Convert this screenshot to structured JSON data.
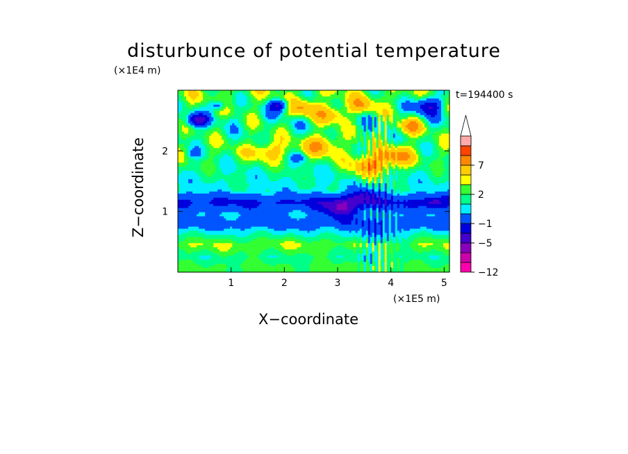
{
  "chart_data": {
    "type": "heatmap",
    "title": "disturbunce of potential temperature",
    "xlabel": "X−coordinate",
    "ylabel": "Z−coordinate",
    "x_unit": "(×1E5 m)",
    "y_unit": "(×1E4 m)",
    "time_label": "t=194400 s",
    "xlim": [
      0,
      5.1
    ],
    "ylim": [
      0,
      3.0
    ],
    "x_ticks": [
      {
        "value": 1,
        "label": "1"
      },
      {
        "value": 2,
        "label": "2"
      },
      {
        "value": 3,
        "label": "3"
      },
      {
        "value": 4,
        "label": "4"
      },
      {
        "value": 5,
        "label": "5"
      }
    ],
    "y_ticks": [
      {
        "value": 1,
        "label": "1"
      },
      {
        "value": 2,
        "label": "2"
      }
    ],
    "colorbar": {
      "levels": [
        -12,
        -9,
        -7,
        -5,
        -3,
        -1,
        0,
        1,
        2,
        3,
        5,
        7,
        9,
        11
      ],
      "colors": [
        "#ff00aa",
        "#cc00aa",
        "#8800bb",
        "#4400cc",
        "#0000dd",
        "#0055ff",
        "#00eeff",
        "#00ff88",
        "#33ff33",
        "#ffff00",
        "#ffcc00",
        "#ff8800",
        "#ff4400",
        "#ff0000",
        "#ffaaaa"
      ],
      "labels": [
        {
          "value": -12,
          "label": "−12"
        },
        {
          "value": -5,
          "label": "−5"
        },
        {
          "value": -1,
          "label": "−1"
        },
        {
          "value": 2,
          "label": "2"
        },
        {
          "value": 7,
          "label": "7"
        }
      ]
    },
    "field_bands": [
      {
        "z": 2.85,
        "value": 1.5,
        "amp": 2.0
      },
      {
        "z": 2.55,
        "value": 0.5,
        "amp": 2.5
      },
      {
        "z": 2.25,
        "value": 0.8,
        "amp": 2.0
      },
      {
        "z": 1.95,
        "value": 1.2,
        "amp": 2.0
      },
      {
        "z": 1.65,
        "value": 0.2,
        "amp": 1.2
      },
      {
        "z": 1.35,
        "value": -0.3,
        "amp": 0.8
      },
      {
        "z": 1.15,
        "value": -3.5,
        "amp": 1.0
      },
      {
        "z": 0.95,
        "value": -1.0,
        "amp": 0.8
      },
      {
        "z": 0.8,
        "value": -2.0,
        "amp": 0.8
      },
      {
        "z": 0.6,
        "value": 0.3,
        "amp": 0.6
      },
      {
        "z": 0.45,
        "value": 2.0,
        "amp": 0.8
      },
      {
        "z": 0.25,
        "value": 0.5,
        "amp": 0.8
      },
      {
        "z": 0.1,
        "value": 1.2,
        "amp": 0.5
      }
    ],
    "blobs": [
      {
        "x": 0.35,
        "z": 2.5,
        "r": 0.16,
        "value": -6
      },
      {
        "x": 0.75,
        "z": 2.75,
        "r": 0.12,
        "value": -4
      },
      {
        "x": 1.9,
        "z": 2.75,
        "r": 0.15,
        "value": -6
      },
      {
        "x": 2.35,
        "z": 2.7,
        "r": 0.2,
        "value": 4
      },
      {
        "x": 2.9,
        "z": 2.6,
        "r": 0.22,
        "value": 4
      },
      {
        "x": 3.45,
        "z": 2.75,
        "r": 0.2,
        "value": 3
      },
      {
        "x": 4.7,
        "z": 2.75,
        "r": 0.22,
        "value": -6
      },
      {
        "x": 4.35,
        "z": 2.4,
        "r": 0.2,
        "value": 4
      },
      {
        "x": 1.7,
        "z": 2.0,
        "r": 0.25,
        "value": 3
      },
      {
        "x": 2.7,
        "z": 2.1,
        "r": 0.25,
        "value": 4
      },
      {
        "x": 3.6,
        "z": 1.75,
        "r": 0.28,
        "value": 5
      },
      {
        "x": 4.1,
        "z": 1.9,
        "r": 0.25,
        "value": 4
      },
      {
        "x": 0.3,
        "z": 1.95,
        "r": 0.12,
        "value": -2
      },
      {
        "x": 2.3,
        "z": 1.9,
        "r": 0.12,
        "value": -2
      },
      {
        "x": 3.05,
        "z": 1.05,
        "r": 0.25,
        "value": -5
      },
      {
        "x": 3.5,
        "z": 1.25,
        "r": 0.2,
        "value": -4
      },
      {
        "x": 3.7,
        "z": 0.55,
        "r": 0.4,
        "value": -1.5
      },
      {
        "x": 4.8,
        "z": 1.15,
        "r": 0.15,
        "value": -3
      }
    ]
  }
}
